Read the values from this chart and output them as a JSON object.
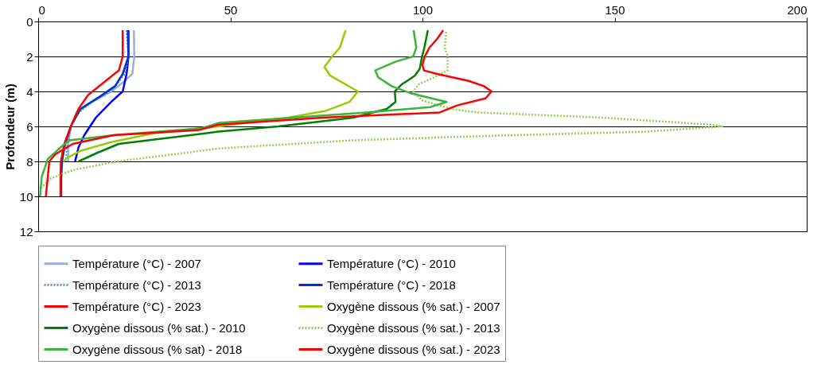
{
  "chart_data": {
    "type": "line",
    "ylabel": "Profondeur (m)",
    "xlim": [
      0,
      200
    ],
    "xticks": [
      0,
      50,
      100,
      150,
      200
    ],
    "ylim": [
      12,
      0
    ],
    "yticks": [
      0,
      2,
      4,
      6,
      8,
      10,
      12
    ],
    "grid": "y",
    "legend": "bottom",
    "marker": "none",
    "series": [
      {
        "name": "Température (°C) - 2007",
        "color": "#95b3d7",
        "line_style": "solid",
        "x": [
          24.9,
          25,
          24.5,
          22,
          19,
          14,
          10,
          8.5,
          7.8,
          7.8
        ],
        "values": [
          0.5,
          2,
          3,
          3.5,
          4,
          4.6,
          5.2,
          6,
          7,
          8
        ]
      },
      {
        "name": "Température (°C) - 2010",
        "color": "#0000ff",
        "line_style": "solid",
        "x": [
          23.5,
          23.5,
          23,
          22,
          19,
          15,
          12,
          10.5,
          9.6
        ],
        "values": [
          0.5,
          2,
          3,
          4,
          4.6,
          5.5,
          6.5,
          7.2,
          8
        ]
      },
      {
        "name": "Température (°C) - 2013",
        "color": "#5b9bd5",
        "line_style": "dotted",
        "x": [
          23,
          23.5,
          22.5,
          19,
          14,
          10,
          8.5,
          7.6,
          7.2
        ],
        "values": [
          0.5,
          2,
          3,
          4,
          4.6,
          5.3,
          6,
          7,
          8
        ]
      },
      {
        "name": "Température (°C) - 2018",
        "color": "#0033cc",
        "line_style": "solid",
        "x": [
          23.3,
          23.5,
          22,
          20,
          16,
          11,
          8.5,
          7,
          6.2,
          6,
          6
        ],
        "values": [
          0.5,
          2,
          3,
          3.7,
          4.3,
          5,
          6,
          7,
          8,
          9,
          10
        ]
      },
      {
        "name": "Température (°C) - 2023",
        "color": "#ff0000",
        "line_style": "solid",
        "x": [
          22,
          22,
          21,
          17,
          13,
          10.5,
          8.5,
          6.8,
          5.9,
          5.8,
          5.8
        ],
        "values": [
          0.5,
          2,
          2.8,
          3.5,
          4.2,
          5,
          6,
          7,
          8,
          9,
          10
        ]
      },
      {
        "name": "Oxygène dissous (% sat.) - 2007",
        "color": "#99cc00",
        "line_style": "solid",
        "x": [
          80,
          78.5,
          76.5,
          74.5,
          76,
          80,
          83.2,
          81,
          75,
          65,
          47,
          30,
          19,
          11,
          7.5,
          6.5
        ],
        "values": [
          0.5,
          1.5,
          2,
          2.6,
          3.1,
          3.6,
          4,
          4.6,
          5.1,
          5.5,
          6,
          6.4,
          6.9,
          7.4,
          7.8,
          8
        ]
      },
      {
        "name": "Oxygène dissous (% sat.) - 2010",
        "color": "#008000",
        "line_style": "solid",
        "x": [
          101.4,
          100.5,
          99.9,
          99.3,
          98,
          94.6,
          92.8,
          93,
          90.7,
          82,
          62.5,
          47,
          32,
          21,
          15.5,
          10.5
        ],
        "values": [
          0.5,
          1.5,
          2,
          2.7,
          3.1,
          3.6,
          4,
          4.6,
          5,
          5.5,
          6,
          6.3,
          6.7,
          7,
          7.5,
          8
        ]
      },
      {
        "name": "Oxygène dissous (% sat.) - 2013",
        "color": "#92d050",
        "line_style": "dotted",
        "x": [
          106.2,
          105.8,
          106.6,
          106.5,
          103,
          99,
          97.6,
          99.8,
          107.5,
          114,
          147,
          175,
          178,
          158,
          116,
          81.5,
          47,
          35,
          20.5,
          9,
          3,
          1
        ],
        "values": [
          0.6,
          1.5,
          2,
          2.8,
          3.2,
          3.6,
          4,
          4.5,
          5,
          5.2,
          5.5,
          5.9,
          6,
          6.3,
          6.55,
          6.8,
          7.26,
          7.6,
          8,
          8.5,
          9,
          9.5
        ]
      },
      {
        "name": "Oxygène dissous (% sat) - 2018",
        "color": "#3cb43c",
        "line_style": "solid",
        "x": [
          97.7,
          98.4,
          97.6,
          93,
          87.7,
          88.5,
          92,
          96.9,
          106.3,
          102,
          85.4,
          47,
          42.6,
          19.7,
          8.2,
          6.6,
          2.5,
          0.9,
          0.5
        ],
        "values": [
          0.5,
          1.5,
          2,
          2.3,
          2.8,
          3.2,
          3.7,
          4.1,
          4.6,
          4.9,
          5.2,
          5.8,
          6.1,
          6.5,
          6.8,
          7.05,
          7.86,
          8.9,
          10
        ]
      },
      {
        "name": "Oxygène dissous (% sat.) - 2023",
        "color": "#ff0000",
        "line_style": "solid",
        "x": [
          105.4,
          103.8,
          101.8,
          100.6,
          100,
          100.4,
          103.8,
          112,
          116,
          118,
          116.4,
          109,
          104.5,
          74,
          47,
          42,
          19.7,
          9,
          4.4,
          2.9,
          2
        ],
        "values": [
          0.5,
          1,
          1.5,
          2,
          2.5,
          2.8,
          3,
          3.4,
          3.7,
          4,
          4.4,
          4.8,
          5.2,
          5.5,
          5.9,
          6.2,
          6.5,
          7,
          7.6,
          8,
          10
        ]
      }
    ]
  }
}
